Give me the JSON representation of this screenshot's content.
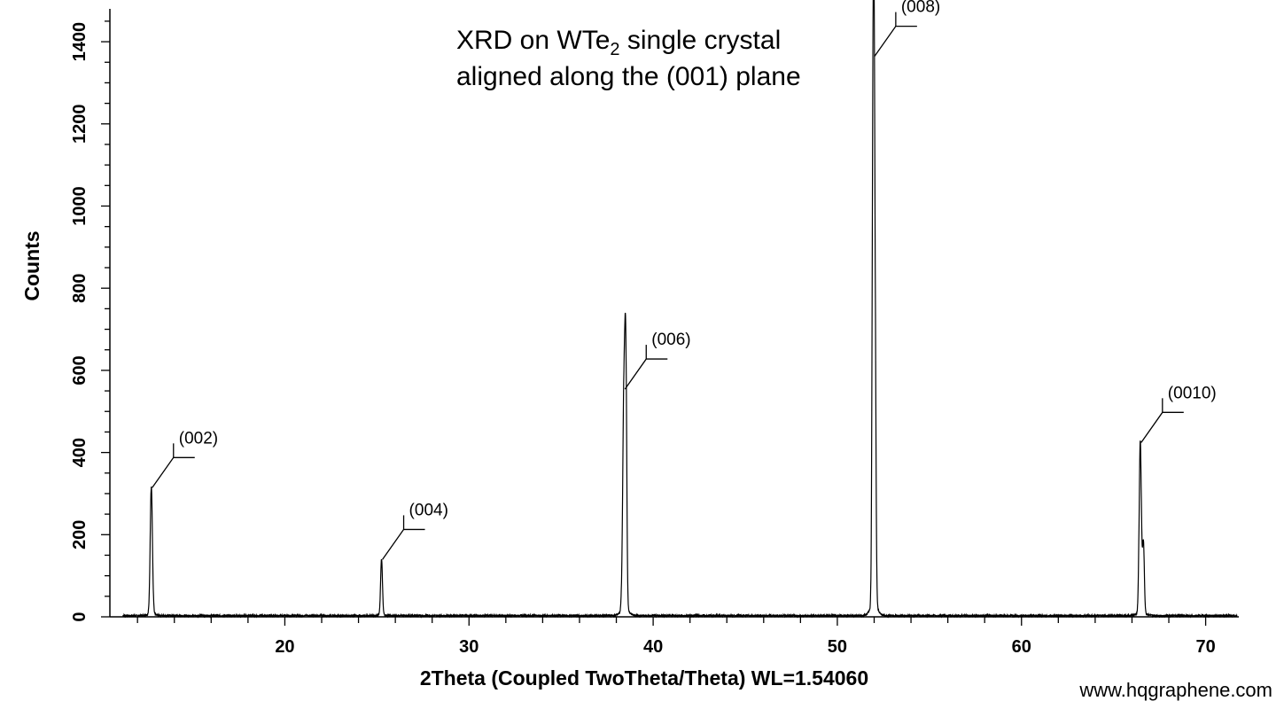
{
  "chart_data": {
    "type": "line",
    "title": "",
    "annotation_line1": "XRD on WTe",
    "annotation_sub": "2",
    "annotation_line1_rest": " single crystal",
    "annotation_line2": "aligned along the (001) plane",
    "xlabel": "2Theta (Coupled TwoTheta/Theta) WL=1.54060",
    "ylabel": "Counts",
    "xlim": [
      10.5,
      71.8
    ],
    "ylim": [
      0,
      1480
    ],
    "xticks": [
      20,
      30,
      40,
      50,
      60,
      70
    ],
    "yticks": [
      0,
      200,
      400,
      600,
      800,
      1000,
      1200,
      1400
    ],
    "grid": false,
    "baseline_counts": 3,
    "peaks": [
      {
        "x": 12.75,
        "y": 310,
        "width": 0.06,
        "label": "(002)"
      },
      {
        "x": 25.25,
        "y": 135,
        "width": 0.05,
        "label": "(004)"
      },
      {
        "x": 38.42,
        "y": 550,
        "width": 0.07,
        "label": "(006)"
      },
      {
        "x": 38.52,
        "y": 470,
        "width": 0.05,
        "label": ""
      },
      {
        "x": 51.97,
        "y": 1360,
        "width": 0.05,
        "label": "(008)"
      },
      {
        "x": 52.05,
        "y": 570,
        "width": 0.05,
        "label": ""
      },
      {
        "x": 51.9,
        "y": 380,
        "width": 0.04,
        "label": ""
      },
      {
        "x": 66.45,
        "y": 420,
        "width": 0.06,
        "label": "(0010)"
      },
      {
        "x": 66.62,
        "y": 170,
        "width": 0.05,
        "label": ""
      }
    ]
  },
  "watermark": "www.hqgraphene.com"
}
